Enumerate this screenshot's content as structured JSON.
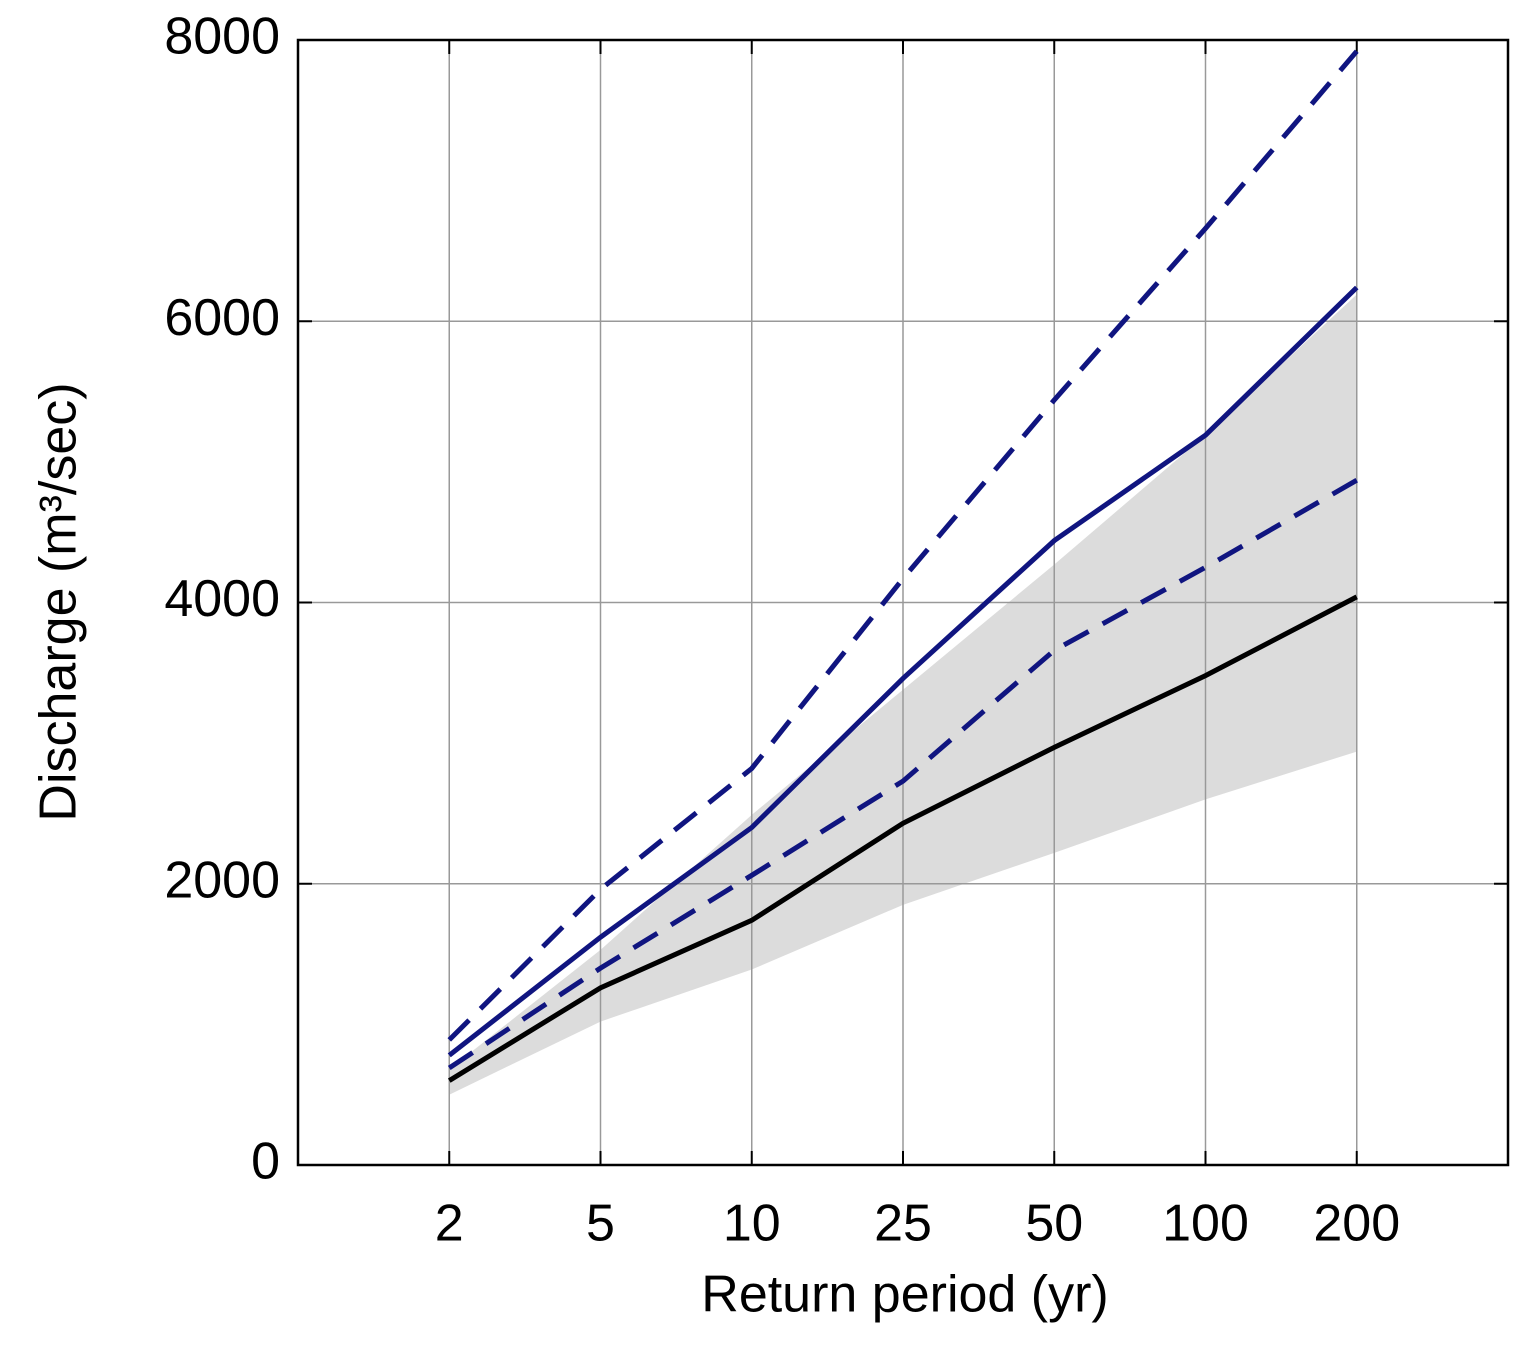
{
  "chart_data": {
    "type": "line",
    "xlabel": "Return period (yr)",
    "ylabel": "Discharge (m³/sec)",
    "categories": [
      "2",
      "5",
      "10",
      "25",
      "50",
      "100",
      "200"
    ],
    "ylim": [
      0,
      8000
    ],
    "yticks": [
      0,
      2000,
      4000,
      6000,
      8000
    ],
    "grid": true,
    "band": {
      "color": "#dcdcdc",
      "lower": [
        500,
        1020,
        1390,
        1850,
        2220,
        2600,
        2940
      ],
      "upper": [
        680,
        1530,
        2490,
        3380,
        4270,
        5190,
        6190
      ]
    },
    "series": [
      {
        "color": "#000000",
        "dashed": false,
        "values": [
          600,
          1260,
          1740,
          2430,
          2970,
          3480,
          4040
        ]
      },
      {
        "color": "#101580",
        "dashed": false,
        "values": [
          780,
          1620,
          2400,
          3460,
          4440,
          5190,
          6240
        ]
      },
      {
        "color": "#101580",
        "dashed": true,
        "values": [
          890,
          1960,
          2820,
          4170,
          5440,
          6660,
          7920
        ]
      },
      {
        "color": "#101580",
        "dashed": true,
        "values": [
          690,
          1400,
          2060,
          2730,
          3660,
          4250,
          4870
        ]
      }
    ]
  }
}
